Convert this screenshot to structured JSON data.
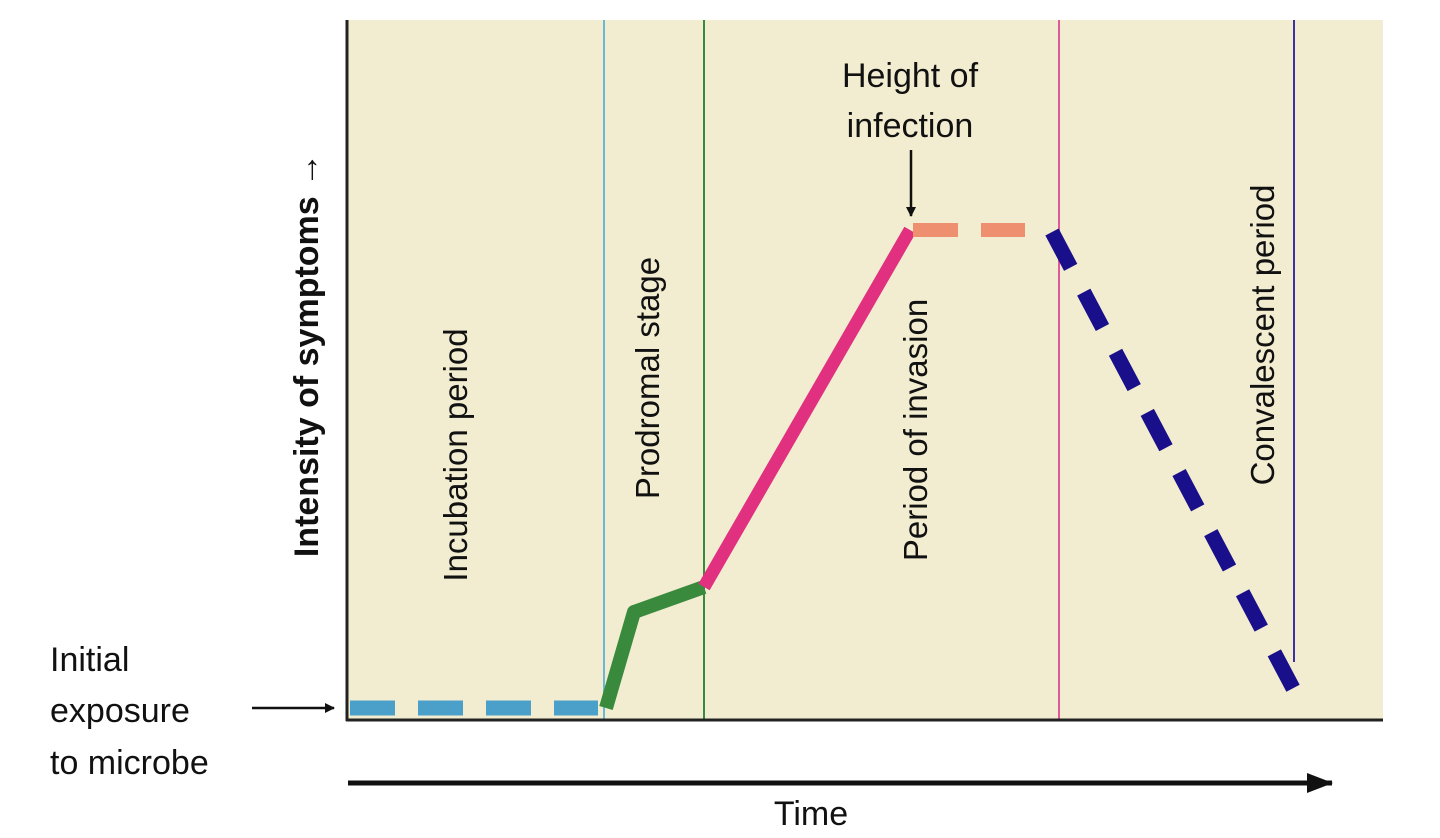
{
  "y_axis_label": "Intensity of symptoms →",
  "x_axis_label": "Time",
  "start_annotation": [
    "Initial",
    "exposure",
    "to microbe"
  ],
  "peak_annotation": [
    "Height of",
    "infection"
  ],
  "periods": [
    {
      "label": "Incubation period",
      "color": "#4aa0c8"
    },
    {
      "label": "Prodromal stage",
      "color": "#3a8a3e"
    },
    {
      "label": "Period of invasion",
      "color": "#e0307f"
    },
    {
      "label": "Convalescent period",
      "color": "#1a0f8a"
    }
  ],
  "peak_color": "#ee9070",
  "background_color": "#f2edd0"
}
